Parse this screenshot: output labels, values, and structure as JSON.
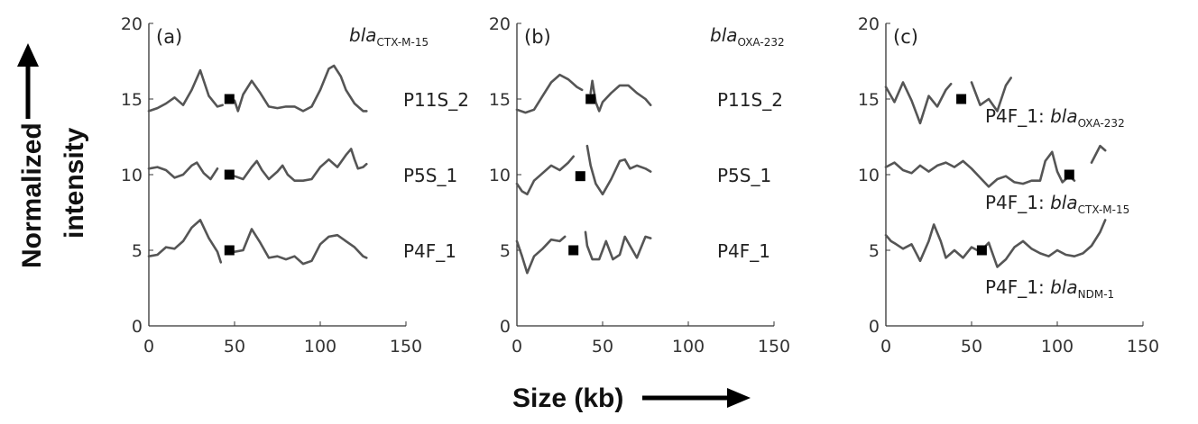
{
  "figure": {
    "ylabel_line1": "Normalized",
    "ylabel_line2": "intensity",
    "xlabel": "Size (kb)",
    "color_trace": "#555555",
    "color_marker": "#000000",
    "color_axis": "#333333"
  },
  "chart_data": [
    {
      "type": "line",
      "panel": "(a)",
      "gene": {
        "main": "bla",
        "sub": "CTX-M-15"
      },
      "xlim": [
        0,
        150
      ],
      "ylim": [
        0,
        20
      ],
      "xticks": [
        0,
        50,
        100,
        150
      ],
      "yticks": [
        0,
        5,
        10,
        15,
        20
      ],
      "series": [
        {
          "name": "P11S_2",
          "label_parts": [
            {
              "text": "P11S_2"
            }
          ],
          "x": [
            0,
            5,
            10,
            15,
            20,
            25,
            30,
            35,
            40,
            43,
            45,
            50,
            52,
            55,
            60,
            65,
            70,
            75,
            80,
            85,
            90,
            95,
            100,
            105,
            108,
            112,
            115,
            120,
            125,
            127
          ],
          "y": [
            14.2,
            14.4,
            14.7,
            15.1,
            14.6,
            15.6,
            16.9,
            15.2,
            14.5,
            14.6,
            null,
            14.9,
            14.2,
            15.3,
            16.2,
            15.4,
            14.5,
            14.4,
            14.5,
            14.5,
            14.2,
            14.5,
            15.6,
            17.0,
            17.2,
            16.5,
            15.6,
            14.7,
            14.2,
            14.2
          ],
          "marker": [
            47,
            15.0
          ]
        },
        {
          "name": "P5S_1",
          "label_parts": [
            {
              "text": "P5S_1"
            }
          ],
          "x": [
            0,
            5,
            10,
            15,
            20,
            25,
            28,
            32,
            36,
            40,
            42,
            45,
            48,
            50,
            55,
            60,
            63,
            66,
            70,
            75,
            78,
            81,
            85,
            90,
            95,
            100,
            105,
            110,
            115,
            118,
            120,
            122,
            125,
            127
          ],
          "y": [
            10.4,
            10.5,
            10.3,
            9.8,
            10.0,
            10.6,
            10.8,
            10.1,
            9.7,
            10.4,
            null,
            null,
            null,
            9.9,
            9.7,
            10.5,
            10.9,
            10.3,
            9.7,
            10.2,
            10.6,
            10.0,
            9.6,
            9.6,
            9.7,
            10.5,
            11.0,
            10.5,
            11.3,
            11.7,
            11.0,
            10.4,
            10.5,
            10.7
          ],
          "marker": [
            47,
            10.0
          ]
        },
        {
          "name": "P4F_1",
          "label_parts": [
            {
              "text": "P4F_1"
            }
          ],
          "x": [
            0,
            5,
            10,
            15,
            20,
            25,
            30,
            35,
            40,
            42,
            45,
            48,
            50,
            55,
            60,
            65,
            70,
            75,
            80,
            85,
            90,
            95,
            100,
            105,
            110,
            115,
            120,
            125,
            127
          ],
          "y": [
            4.6,
            4.7,
            5.2,
            5.1,
            5.6,
            6.5,
            7.0,
            5.8,
            4.9,
            4.2,
            null,
            null,
            4.9,
            5.0,
            6.4,
            5.5,
            4.5,
            4.6,
            4.4,
            4.6,
            4.1,
            4.3,
            5.4,
            5.9,
            6.0,
            5.6,
            5.2,
            4.6,
            4.5
          ],
          "marker": [
            47,
            5.0
          ]
        }
      ]
    },
    {
      "type": "line",
      "panel": "(b)",
      "gene": {
        "main": "bla",
        "sub": "OXA-232"
      },
      "xlim": [
        0,
        150
      ],
      "ylim": [
        0,
        20
      ],
      "xticks": [
        0,
        50,
        100,
        150
      ],
      "yticks": [
        0,
        5,
        10,
        15,
        20
      ],
      "series": [
        {
          "name": "P11S_2",
          "label_parts": [
            {
              "text": "P11S_2"
            }
          ],
          "x": [
            0,
            5,
            10,
            15,
            20,
            25,
            30,
            35,
            38,
            40,
            43,
            44,
            46,
            48,
            50,
            55,
            60,
            65,
            70,
            75,
            78
          ],
          "y": [
            14.3,
            14.1,
            14.3,
            15.2,
            16.1,
            16.6,
            16.3,
            15.8,
            15.6,
            null,
            15.4,
            16.2,
            14.8,
            14.2,
            14.8,
            15.4,
            15.9,
            15.9,
            15.4,
            15.0,
            14.6
          ],
          "marker": [
            43,
            15.0
          ]
        },
        {
          "name": "P5S_1",
          "label_parts": [
            {
              "text": "P5S_1"
            }
          ],
          "x": [
            0,
            3,
            6,
            10,
            15,
            20,
            25,
            30,
            33,
            36,
            38,
            40,
            41,
            43,
            46,
            50,
            55,
            60,
            63,
            66,
            70,
            75,
            78
          ],
          "y": [
            9.4,
            8.9,
            8.7,
            9.6,
            10.1,
            10.6,
            10.3,
            10.8,
            11.2,
            null,
            null,
            null,
            11.9,
            10.6,
            9.4,
            8.7,
            9.7,
            10.9,
            11.0,
            10.4,
            10.6,
            10.4,
            10.2
          ],
          "marker": [
            37,
            9.9
          ]
        },
        {
          "name": "P4F_1",
          "label_parts": [
            {
              "text": "P4F_1"
            }
          ],
          "x": [
            0,
            3,
            6,
            10,
            15,
            20,
            25,
            28,
            30,
            34,
            36,
            38,
            40,
            41,
            44,
            48,
            52,
            56,
            60,
            63,
            66,
            70,
            75,
            78
          ],
          "y": [
            5.6,
            4.6,
            3.5,
            4.6,
            5.1,
            5.7,
            5.6,
            5.9,
            null,
            null,
            null,
            null,
            6.2,
            5.3,
            4.4,
            4.4,
            5.6,
            4.4,
            4.7,
            5.9,
            5.3,
            4.5,
            5.9,
            5.8
          ],
          "marker": [
            33,
            5.0
          ]
        }
      ]
    },
    {
      "type": "line",
      "panel": "(c)",
      "gene": {
        "main": "",
        "sub": ""
      },
      "xlim": [
        0,
        150
      ],
      "ylim": [
        0,
        20
      ],
      "xticks": [
        0,
        50,
        100,
        150
      ],
      "yticks": [
        0,
        5,
        10,
        15,
        20
      ],
      "series": [
        {
          "name": "P4F_1: blaOXA-232",
          "label_parts": [
            {
              "text": "P4F_1: "
            },
            {
              "text": "bla",
              "italic": true
            },
            {
              "text": "OXA-232",
              "sub": true
            }
          ],
          "x": [
            0,
            5,
            10,
            15,
            20,
            25,
            30,
            35,
            38,
            40,
            45,
            50,
            55,
            60,
            65,
            70,
            73
          ],
          "y": [
            15.8,
            14.8,
            16.1,
            14.9,
            13.4,
            15.2,
            14.5,
            15.6,
            16.0,
            null,
            null,
            16.1,
            14.6,
            15.0,
            14.2,
            15.9,
            16.4
          ],
          "marker": [
            44,
            15.0
          ]
        },
        {
          "name": "P4F_1: blaCTX-M-15",
          "label_parts": [
            {
              "text": "P4F_1: "
            },
            {
              "text": "bla",
              "italic": true
            },
            {
              "text": "CTX-M-15",
              "sub": true
            }
          ],
          "x": [
            0,
            5,
            10,
            15,
            20,
            25,
            30,
            35,
            40,
            45,
            50,
            55,
            60,
            65,
            70,
            75,
            80,
            85,
            90,
            93,
            97,
            100,
            103,
            107,
            110,
            113,
            115,
            120,
            125,
            128
          ],
          "y": [
            10.5,
            10.8,
            10.3,
            10.1,
            10.6,
            10.2,
            10.6,
            10.8,
            10.5,
            10.9,
            10.4,
            9.8,
            9.2,
            9.7,
            9.9,
            9.5,
            9.4,
            9.6,
            9.6,
            10.9,
            11.5,
            10.2,
            9.5,
            9.9,
            9.6,
            null,
            null,
            10.8,
            11.9,
            11.6
          ],
          "marker": [
            107,
            10.0
          ]
        },
        {
          "name": "P4F_1: blaNDM-1",
          "label_parts": [
            {
              "text": "P4F_1: "
            },
            {
              "text": "bla",
              "italic": true
            },
            {
              "text": "NDM-1",
              "sub": true
            }
          ],
          "x": [
            0,
            3,
            6,
            10,
            15,
            20,
            25,
            28,
            32,
            35,
            40,
            45,
            50,
            55,
            60,
            65,
            70,
            75,
            80,
            85,
            90,
            95,
            100,
            105,
            110,
            115,
            120,
            125,
            128
          ],
          "y": [
            6.0,
            5.6,
            5.4,
            5.1,
            5.4,
            4.3,
            5.6,
            6.7,
            5.6,
            4.5,
            5.0,
            4.5,
            5.2,
            4.9,
            5.5,
            3.9,
            4.4,
            5.2,
            5.6,
            5.1,
            4.8,
            4.6,
            5.0,
            4.7,
            4.6,
            4.8,
            5.3,
            6.2,
            7.0
          ],
          "marker": [
            56,
            5.0
          ]
        }
      ]
    }
  ]
}
